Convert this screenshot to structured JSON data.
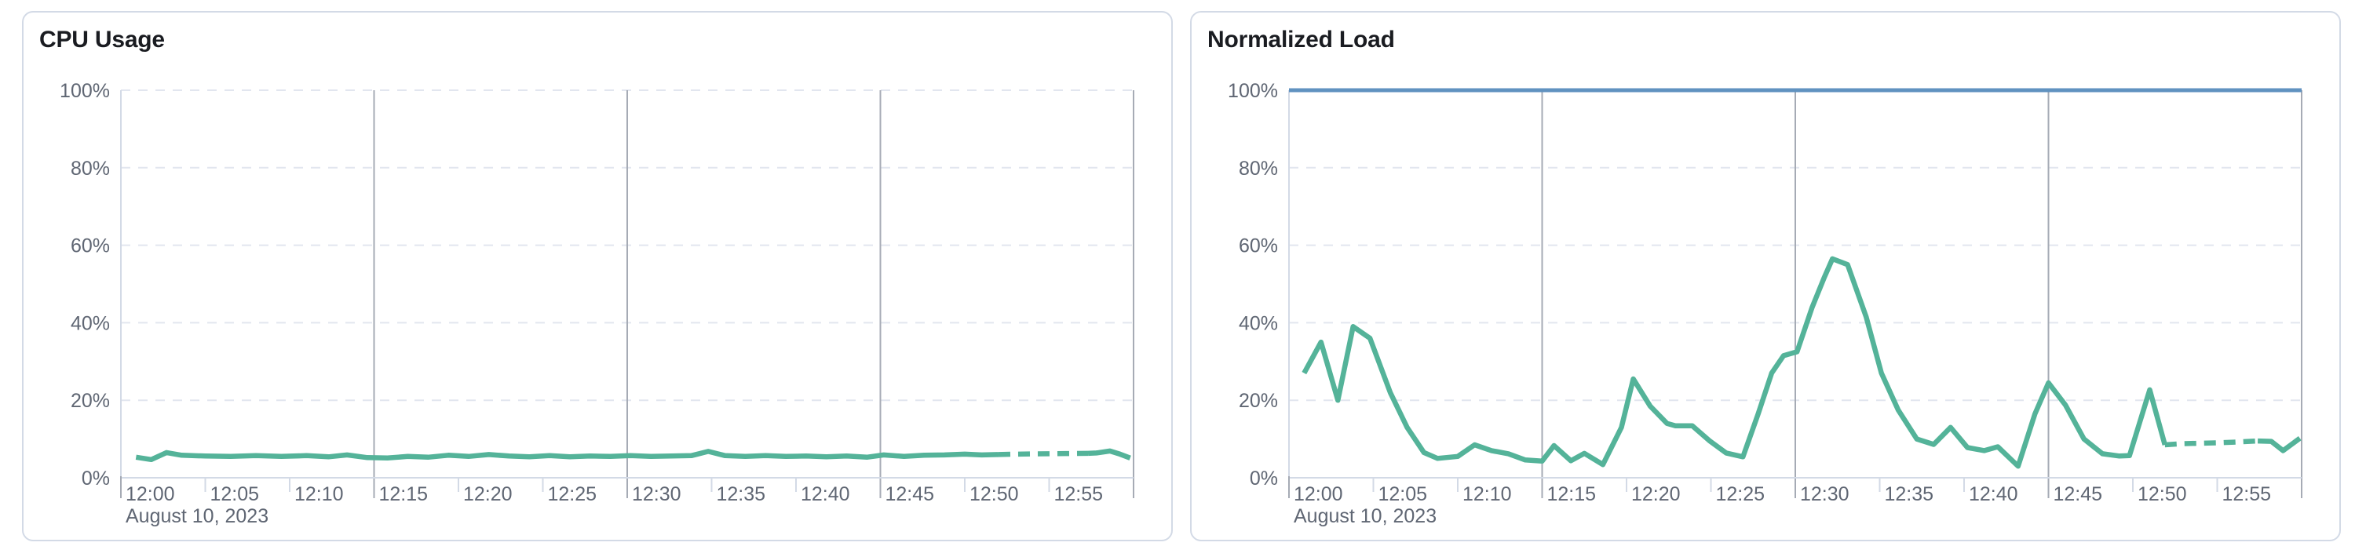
{
  "colors": {
    "panel_border": "#D3DAE6",
    "grid_dashed": "#E2E6EF",
    "grid_dark": "#A6ABB5",
    "axis_light": "#D3DAE6",
    "tick_text": "#5F6673",
    "title_text": "#1A1C21",
    "cpu_line": "#54B399",
    "load_line": "#54B399",
    "limit_line": "#6092C0"
  },
  "chart_data": [
    {
      "type": "line",
      "title": "CPU Usage",
      "unit": "%",
      "x_axis": {
        "domain_min": 0,
        "domain_max": 60,
        "tick_minutes": [
          0,
          5,
          10,
          15,
          20,
          25,
          30,
          35,
          40,
          45,
          50,
          55
        ],
        "tick_labels": [
          "12:00",
          "12:05",
          "12:10",
          "12:15",
          "12:20",
          "12:25",
          "12:30",
          "12:35",
          "12:40",
          "12:45",
          "12:50",
          "12:55"
        ],
        "date_label": "August 10, 2023",
        "dark_gridline_minutes": [
          15,
          30,
          45,
          60
        ]
      },
      "y_axis": {
        "min": 0,
        "max": 100,
        "tick_values": [
          0,
          20,
          40,
          60,
          80,
          100
        ],
        "tick_labels": [
          "0%",
          "20%",
          "40%",
          "60%",
          "80%",
          "100%"
        ]
      },
      "limit_line": null,
      "series": [
        {
          "name": "CPU Usage",
          "color": "#54B399",
          "segments": [
            {
              "style": "solid",
              "points": [
                [
                  0.9,
                  5.3
                ],
                [
                  1.8,
                  4.7
                ],
                [
                  2.7,
                  6.5
                ],
                [
                  3.6,
                  5.8
                ],
                [
                  5,
                  5.6
                ],
                [
                  6.5,
                  5.5
                ],
                [
                  8,
                  5.7
                ],
                [
                  9.5,
                  5.5
                ],
                [
                  11,
                  5.7
                ],
                [
                  12.3,
                  5.4
                ],
                [
                  13.4,
                  5.9
                ],
                [
                  14.6,
                  5.2
                ],
                [
                  15.8,
                  5.1
                ],
                [
                  17,
                  5.5
                ],
                [
                  18.2,
                  5.3
                ],
                [
                  19.4,
                  5.8
                ],
                [
                  20.6,
                  5.5
                ],
                [
                  21.8,
                  6.0
                ],
                [
                  23,
                  5.6
                ],
                [
                  24.2,
                  5.4
                ],
                [
                  25.4,
                  5.7
                ],
                [
                  26.6,
                  5.4
                ],
                [
                  27.8,
                  5.6
                ],
                [
                  29,
                  5.5
                ],
                [
                  30.2,
                  5.7
                ],
                [
                  31.4,
                  5.5
                ],
                [
                  32.6,
                  5.6
                ],
                [
                  33.8,
                  5.7
                ],
                [
                  34.8,
                  6.8
                ],
                [
                  35.8,
                  5.7
                ],
                [
                  37,
                  5.5
                ],
                [
                  38.2,
                  5.7
                ],
                [
                  39.4,
                  5.5
                ],
                [
                  40.6,
                  5.6
                ],
                [
                  41.8,
                  5.4
                ],
                [
                  43,
                  5.6
                ],
                [
                  44.2,
                  5.3
                ],
                [
                  45.2,
                  5.9
                ],
                [
                  46.4,
                  5.5
                ],
                [
                  47.6,
                  5.8
                ],
                [
                  48.8,
                  5.9
                ],
                [
                  50,
                  6.1
                ],
                [
                  51,
                  5.9
                ],
                [
                  52,
                  6.0
                ]
              ]
            },
            {
              "style": "dashed",
              "points": [
                [
                  52,
                  6.0
                ],
                [
                  53,
                  6.1
                ],
                [
                  54,
                  6.15
                ],
                [
                  55,
                  6.2
                ],
                [
                  56,
                  6.25
                ],
                [
                  57.3,
                  6.3
                ]
              ]
            },
            {
              "style": "solid",
              "points": [
                [
                  57.3,
                  6.3
                ],
                [
                  57.8,
                  6.4
                ],
                [
                  58.6,
                  6.9
                ],
                [
                  59.2,
                  6.1
                ],
                [
                  59.8,
                  5.1
                ]
              ]
            }
          ]
        }
      ]
    },
    {
      "type": "line",
      "title": "Normalized Load",
      "unit": "%",
      "x_axis": {
        "domain_min": 0,
        "domain_max": 60,
        "tick_minutes": [
          0,
          5,
          10,
          15,
          20,
          25,
          30,
          35,
          40,
          45,
          50,
          55
        ],
        "tick_labels": [
          "12:00",
          "12:05",
          "12:10",
          "12:15",
          "12:20",
          "12:25",
          "12:30",
          "12:35",
          "12:40",
          "12:45",
          "12:50",
          "12:55"
        ],
        "date_label": "August 10, 2023",
        "dark_gridline_minutes": [
          15,
          30,
          45,
          60
        ]
      },
      "y_axis": {
        "min": 0,
        "max": 100,
        "tick_values": [
          0,
          20,
          40,
          60,
          80,
          100
        ],
        "tick_labels": [
          "0%",
          "20%",
          "40%",
          "60%",
          "80%",
          "100%"
        ]
      },
      "limit_line": {
        "value": 100,
        "color": "#6092C0"
      },
      "series": [
        {
          "name": "Normalized Load",
          "color": "#54B399",
          "segments": [
            {
              "style": "solid",
              "points": [
                [
                  0.9,
                  27
                ],
                [
                  1.9,
                  35
                ],
                [
                  2.9,
                  20
                ],
                [
                  3.8,
                  39
                ],
                [
                  4.8,
                  36
                ],
                [
                  6,
                  22
                ],
                [
                  7,
                  13
                ],
                [
                  8,
                  6.5
                ],
                [
                  8.8,
                  5
                ],
                [
                  10,
                  5.5
                ],
                [
                  11,
                  8.5
                ],
                [
                  12,
                  7
                ],
                [
                  13,
                  6.2
                ],
                [
                  14,
                  4.6
                ],
                [
                  15,
                  4.3
                ],
                [
                  15.7,
                  8.3
                ],
                [
                  16.7,
                  4.4
                ],
                [
                  17.5,
                  6.3
                ],
                [
                  18.6,
                  3.4
                ],
                [
                  19.7,
                  13
                ],
                [
                  20.4,
                  25.5
                ],
                [
                  21.4,
                  18.5
                ],
                [
                  22.4,
                  14
                ],
                [
                  22.9,
                  13.4
                ],
                [
                  23.9,
                  13.4
                ],
                [
                  24.9,
                  9.6
                ],
                [
                  25.9,
                  6.4
                ],
                [
                  26.9,
                  5.4
                ],
                [
                  27.8,
                  16.5
                ],
                [
                  28.6,
                  27
                ],
                [
                  29.3,
                  31.5
                ],
                [
                  30.1,
                  32.5
                ],
                [
                  31,
                  44
                ],
                [
                  31.7,
                  51.5
                ],
                [
                  32.2,
                  56.5
                ],
                [
                  33.1,
                  55
                ],
                [
                  34.2,
                  41.5
                ],
                [
                  35.1,
                  27
                ],
                [
                  36.1,
                  17.5
                ],
                [
                  37.2,
                  10
                ],
                [
                  38.2,
                  8.6
                ],
                [
                  39.2,
                  13
                ],
                [
                  40.2,
                  7.8
                ],
                [
                  41.2,
                  7
                ],
                [
                  42,
                  8
                ],
                [
                  43.2,
                  3
                ],
                [
                  44.2,
                  16.5
                ],
                [
                  45,
                  24.5
                ],
                [
                  46,
                  18.8
                ],
                [
                  47.1,
                  10
                ],
                [
                  48.2,
                  6.2
                ],
                [
                  49.2,
                  5.6
                ],
                [
                  49.8,
                  5.7
                ],
                [
                  51,
                  22.7
                ],
                [
                  51.9,
                  8.5
                ]
              ]
            },
            {
              "style": "dashed",
              "points": [
                [
                  51.9,
                  8.5
                ],
                [
                  53,
                  8.8
                ],
                [
                  54,
                  8.9
                ],
                [
                  55,
                  9.0
                ],
                [
                  56,
                  9.2
                ],
                [
                  57.4,
                  9.5
                ]
              ]
            },
            {
              "style": "solid",
              "points": [
                [
                  57.4,
                  9.5
                ],
                [
                  58.2,
                  9.4
                ],
                [
                  58.9,
                  7.0
                ],
                [
                  59.9,
                  10.2
                ]
              ]
            }
          ]
        }
      ]
    }
  ]
}
